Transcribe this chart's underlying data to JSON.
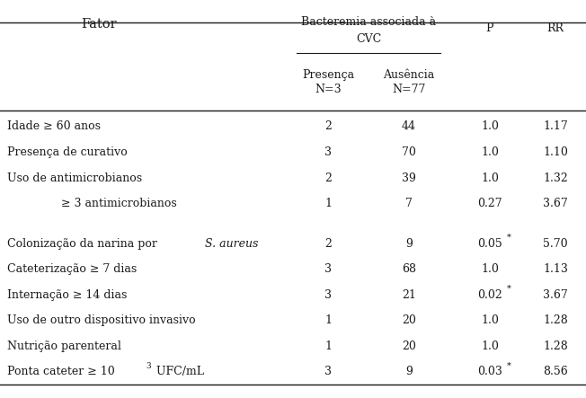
{
  "title_col1": "Fator",
  "title_bact1": "Bacteremia associada à",
  "title_bact2": "CVC",
  "title_presenca": "Presença",
  "title_presenca2": "N=3",
  "title_ausencia": "Ausência",
  "title_ausencia2": "N=77",
  "title_p": "P",
  "title_rr": "RR",
  "rows": [
    {
      "fator": "Idade ≥ 60 anos",
      "presenca": "2",
      "ausencia": "44",
      "p": "1.0",
      "p_star": false,
      "rr": "1.17",
      "italic": false,
      "indent": false,
      "superscript": false
    },
    {
      "fator": "Presença de curativo",
      "presenca": "3",
      "ausencia": "70",
      "p": "1.0",
      "p_star": false,
      "rr": "1.10",
      "italic": false,
      "indent": false,
      "superscript": false
    },
    {
      "fator": "Uso de antimicrobianos",
      "presenca": "2",
      "ausencia": "39",
      "p": "1.0",
      "p_star": false,
      "rr": "1.32",
      "italic": false,
      "indent": false,
      "superscript": false
    },
    {
      "fator": "≥ 3 antimicrobianos",
      "presenca": "1",
      "ausencia": "7",
      "p": "0.27",
      "p_star": false,
      "rr": "3.67",
      "italic": false,
      "indent": true,
      "superscript": false
    },
    {
      "fator": "",
      "presenca": "",
      "ausencia": "",
      "p": "",
      "p_star": false,
      "rr": "",
      "italic": false,
      "indent": false,
      "superscript": false,
      "empty": true
    },
    {
      "fator": "Colonização da narina por ",
      "presenca": "2",
      "ausencia": "9",
      "p": "0.05",
      "p_star": true,
      "rr": "5.70",
      "italic": true,
      "italic_text": "S. aureus",
      "indent": false,
      "superscript": false
    },
    {
      "fator": "Cateterização ≥ 7 dias",
      "presenca": "3",
      "ausencia": "68",
      "p": "1.0",
      "p_star": false,
      "rr": "1.13",
      "italic": false,
      "indent": false,
      "superscript": false
    },
    {
      "fator": "Internação ≥ 14 dias",
      "presenca": "3",
      "ausencia": "21",
      "p": "0.02",
      "p_star": true,
      "rr": "3.67",
      "italic": false,
      "indent": false,
      "superscript": false
    },
    {
      "fator": "Uso de outro dispositivo invasivo",
      "presenca": "1",
      "ausencia": "20",
      "p": "1.0",
      "p_star": false,
      "rr": "1.28",
      "italic": false,
      "indent": false,
      "superscript": false
    },
    {
      "fator": "Nutrição parenteral",
      "presenca": "1",
      "ausencia": "20",
      "p": "1.0",
      "p_star": false,
      "rr": "1.28",
      "italic": false,
      "indent": false,
      "superscript": false
    },
    {
      "fator": "Ponta cateter ≥ 10",
      "presenca": "3",
      "ausencia": "9",
      "p": "0.03",
      "p_star": true,
      "rr": "8.56",
      "italic": false,
      "indent": false,
      "superscript": true,
      "sup_text": "3",
      "after_text": " UFC/mL"
    }
  ],
  "bg_color": "#ffffff",
  "text_color": "#1a1a1a",
  "font_size": 9.0,
  "header_font_size": 9.0
}
